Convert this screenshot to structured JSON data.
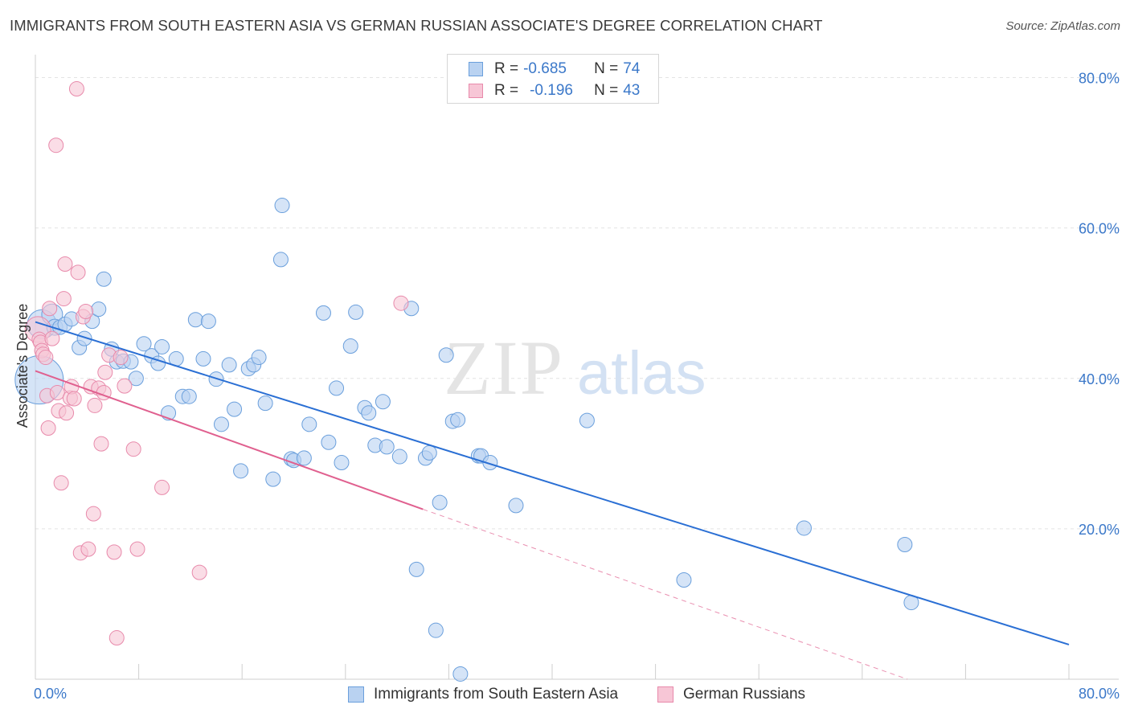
{
  "header": {
    "title": "IMMIGRANTS FROM SOUTH EASTERN ASIA VS GERMAN RUSSIAN ASSOCIATE'S DEGREE CORRELATION CHART",
    "source": "Source: ZipAtlas.com"
  },
  "legend": {
    "r_label": "R =",
    "n_label": "N =",
    "rows": [
      {
        "r": "-0.685",
        "n": "74"
      },
      {
        "r": "-0.196",
        "n": "43"
      }
    ]
  },
  "watermark": {
    "zip": "ZIP",
    "atlas": "atlas"
  },
  "chart_data": {
    "type": "scatter",
    "title": "IMMIGRANTS FROM SOUTH EASTERN ASIA VS GERMAN RUSSIAN ASSOCIATE'S DEGREE CORRELATION CHART",
    "xlabel": "",
    "ylabel": "Associate's Degree",
    "xlim": [
      0,
      80
    ],
    "ylim": [
      0,
      80
    ],
    "x_tick_labels": [
      "0.0%",
      "80.0%"
    ],
    "y_tick_labels": [
      "20.0%",
      "40.0%",
      "60.0%",
      "80.0%"
    ],
    "y_ticks": [
      20,
      40,
      60,
      80
    ],
    "grid": true,
    "colors": {
      "blue_fill": "#b9d2f1",
      "blue_stroke": "#6a9fdc",
      "blue_line": "#2a6fd4",
      "pink_fill": "#f7c6d6",
      "pink_stroke": "#e88aab",
      "pink_line": "#e0608f",
      "tick_text": "#3b78c9",
      "grid": "#e3e3e3"
    },
    "series": [
      {
        "name": "Immigrants from South Eastern Asia",
        "r": -0.685,
        "n": 74,
        "trend": {
          "x0": 0,
          "y0": 47.5,
          "x1": 80,
          "y1": 4.6
        },
        "points": [
          [
            0.3,
            39.8,
            30
          ],
          [
            0.5,
            47.2,
            18
          ],
          [
            1.3,
            48.5,
            13
          ],
          [
            1.5,
            46.8,
            10
          ],
          [
            1.9,
            46.8,
            9
          ],
          [
            2.3,
            47.2,
            9
          ],
          [
            2.8,
            47.9,
            9
          ],
          [
            3.4,
            44.1,
            9
          ],
          [
            3.8,
            45.3,
            9
          ],
          [
            4.4,
            47.6,
            9
          ],
          [
            4.9,
            49.2,
            9
          ],
          [
            5.3,
            53.2,
            9
          ],
          [
            5.9,
            43.9,
            9
          ],
          [
            6.3,
            42.2,
            9
          ],
          [
            6.8,
            42.3,
            9
          ],
          [
            7.4,
            42.2,
            9
          ],
          [
            7.8,
            40.0,
            9
          ],
          [
            8.4,
            44.6,
            9
          ],
          [
            9.0,
            43.0,
            9
          ],
          [
            9.5,
            42.0,
            9
          ],
          [
            9.8,
            44.2,
            9
          ],
          [
            10.3,
            35.4,
            9
          ],
          [
            10.9,
            42.6,
            9
          ],
          [
            11.4,
            37.6,
            9
          ],
          [
            11.9,
            37.6,
            9
          ],
          [
            12.4,
            47.8,
            9
          ],
          [
            13.0,
            42.6,
            9
          ],
          [
            13.4,
            47.6,
            9
          ],
          [
            14.0,
            39.9,
            9
          ],
          [
            14.4,
            33.9,
            9
          ],
          [
            15.0,
            41.8,
            9
          ],
          [
            15.4,
            35.9,
            9
          ],
          [
            15.9,
            27.7,
            9
          ],
          [
            16.5,
            41.3,
            9
          ],
          [
            16.9,
            41.8,
            9
          ],
          [
            17.3,
            42.8,
            9
          ],
          [
            17.8,
            36.7,
            9
          ],
          [
            18.4,
            26.6,
            9
          ],
          [
            19.0,
            55.8,
            9
          ],
          [
            19.1,
            63.0,
            9
          ],
          [
            19.8,
            29.3,
            9
          ],
          [
            20.0,
            29.1,
            9
          ],
          [
            20.8,
            29.4,
            9
          ],
          [
            21.2,
            33.9,
            9
          ],
          [
            22.3,
            48.7,
            9
          ],
          [
            22.7,
            31.5,
            9
          ],
          [
            23.3,
            38.7,
            9
          ],
          [
            23.7,
            28.8,
            9
          ],
          [
            24.4,
            44.3,
            9
          ],
          [
            24.8,
            48.8,
            9
          ],
          [
            25.5,
            36.1,
            9
          ],
          [
            25.8,
            35.4,
            9
          ],
          [
            26.3,
            31.1,
            9
          ],
          [
            26.9,
            36.9,
            9
          ],
          [
            27.2,
            30.9,
            9
          ],
          [
            28.2,
            29.6,
            9
          ],
          [
            29.1,
            49.3,
            9
          ],
          [
            29.5,
            14.6,
            9
          ],
          [
            30.2,
            29.4,
            9
          ],
          [
            30.5,
            30.1,
            9
          ],
          [
            31.0,
            6.5,
            9
          ],
          [
            31.3,
            23.5,
            9
          ],
          [
            31.8,
            43.1,
            9
          ],
          [
            32.3,
            34.3,
            9
          ],
          [
            32.7,
            34.5,
            9
          ],
          [
            32.9,
            0.7,
            9
          ],
          [
            34.3,
            29.7,
            9
          ],
          [
            34.5,
            29.7,
            9
          ],
          [
            35.2,
            28.8,
            9
          ],
          [
            37.2,
            23.1,
            9
          ],
          [
            42.7,
            34.4,
            9
          ],
          [
            50.2,
            13.2,
            9
          ],
          [
            59.5,
            20.1,
            9
          ],
          [
            67.3,
            17.9,
            9
          ],
          [
            67.8,
            10.2,
            9
          ]
        ]
      },
      {
        "name": "German Russians",
        "r": -0.196,
        "n": 43,
        "trend": {
          "x0": 0,
          "y0": 41.0,
          "x1": 30,
          "y1": 22.6
        },
        "trend_extension": {
          "x0": 30,
          "y0": 22.6,
          "x1": 67.5,
          "y1": 0
        },
        "points": [
          [
            0.2,
            46.5,
            16
          ],
          [
            0.3,
            45.2,
            9
          ],
          [
            0.4,
            44.8,
            9
          ],
          [
            0.5,
            43.7,
            9
          ],
          [
            0.6,
            43.2,
            9
          ],
          [
            0.8,
            42.8,
            9
          ],
          [
            0.9,
            37.7,
            9
          ],
          [
            1.0,
            33.4,
            9
          ],
          [
            1.1,
            49.3,
            9
          ],
          [
            1.3,
            45.3,
            9
          ],
          [
            1.6,
            71.0,
            9
          ],
          [
            1.7,
            38.1,
            9
          ],
          [
            1.8,
            35.7,
            9
          ],
          [
            2.0,
            26.1,
            9
          ],
          [
            2.2,
            50.6,
            9
          ],
          [
            2.3,
            55.2,
            9
          ],
          [
            2.4,
            35.4,
            9
          ],
          [
            2.7,
            37.4,
            9
          ],
          [
            2.8,
            38.9,
            9
          ],
          [
            3.0,
            37.3,
            9
          ],
          [
            3.2,
            78.5,
            9
          ],
          [
            3.3,
            54.1,
            9
          ],
          [
            3.5,
            16.8,
            9
          ],
          [
            3.7,
            48.2,
            9
          ],
          [
            3.9,
            48.9,
            9
          ],
          [
            4.1,
            17.3,
            9
          ],
          [
            4.3,
            38.9,
            9
          ],
          [
            4.5,
            22.0,
            9
          ],
          [
            4.6,
            36.4,
            9
          ],
          [
            4.9,
            38.7,
            9
          ],
          [
            5.1,
            31.3,
            9
          ],
          [
            5.3,
            38.1,
            9
          ],
          [
            5.4,
            40.8,
            9
          ],
          [
            5.7,
            43.1,
            9
          ],
          [
            6.1,
            16.9,
            9
          ],
          [
            6.3,
            5.5,
            9
          ],
          [
            6.6,
            42.8,
            9
          ],
          [
            6.9,
            39.0,
            9
          ],
          [
            7.6,
            30.6,
            9
          ],
          [
            7.9,
            17.3,
            9
          ],
          [
            9.8,
            25.5,
            9
          ],
          [
            12.7,
            14.2,
            9
          ],
          [
            28.3,
            50.0,
            9
          ]
        ]
      }
    ]
  },
  "bottom_legend": {
    "items": [
      "Immigrants from South Eastern Asia",
      "German Russians"
    ]
  }
}
